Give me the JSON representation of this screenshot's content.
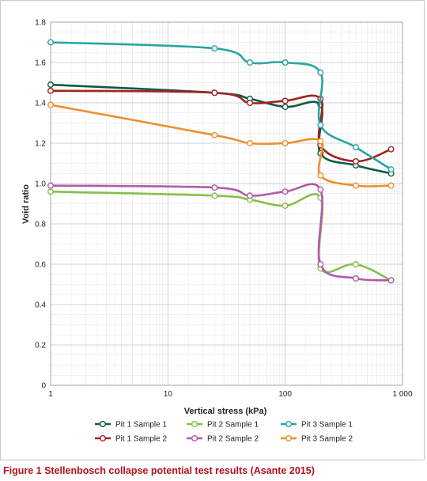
{
  "chart_data": {
    "type": "line",
    "xlabel": "Vertical stress (kPa)",
    "ylabel": "Void ratio",
    "xscale": "log",
    "xlim": [
      1,
      1000
    ],
    "ylim": [
      0,
      1.8
    ],
    "xticks": [
      {
        "value": 1,
        "label": "1"
      },
      {
        "value": 10,
        "label": "10"
      },
      {
        "value": 100,
        "label": "100"
      },
      {
        "value": 1000,
        "label": "1 000"
      }
    ],
    "yticks": [
      {
        "value": 0,
        "label": "0"
      },
      {
        "value": 0.2,
        "label": "0.2"
      },
      {
        "value": 0.4,
        "label": "0.4"
      },
      {
        "value": 0.6,
        "label": "0.6"
      },
      {
        "value": 0.8,
        "label": "0.8"
      },
      {
        "value": 1.0,
        "label": "1.0"
      },
      {
        "value": 1.2,
        "label": "1.2"
      },
      {
        "value": 1.4,
        "label": "1.4"
      },
      {
        "value": 1.6,
        "label": "1.6"
      },
      {
        "value": 1.8,
        "label": "1.8"
      }
    ],
    "grid": true,
    "legend_position": "bottom",
    "series": [
      {
        "name": "Pit 1 Sample 1",
        "color": "#0f5a44",
        "points": [
          [
            1,
            1.49
          ],
          [
            25,
            1.45
          ],
          [
            50,
            1.42
          ],
          [
            100,
            1.38
          ],
          [
            200,
            1.39
          ],
          [
            200,
            1.15
          ],
          [
            400,
            1.09
          ],
          [
            800,
            1.05
          ]
        ]
      },
      {
        "name": "Pit 1 Sample 2",
        "color": "#a0231e",
        "points": [
          [
            1,
            1.46
          ],
          [
            25,
            1.45
          ],
          [
            50,
            1.4
          ],
          [
            100,
            1.41
          ],
          [
            200,
            1.42
          ],
          [
            200,
            1.19
          ],
          [
            400,
            1.11
          ],
          [
            800,
            1.17
          ]
        ]
      },
      {
        "name": "Pit 2 Sample 1",
        "color": "#86c04b",
        "points": [
          [
            1,
            0.96
          ],
          [
            25,
            0.94
          ],
          [
            50,
            0.92
          ],
          [
            100,
            0.89
          ],
          [
            200,
            0.93
          ],
          [
            200,
            0.58
          ],
          [
            400,
            0.6
          ],
          [
            800,
            0.52
          ]
        ]
      },
      {
        "name": "Pit 2 Sample 2",
        "color": "#b35aa8",
        "points": [
          [
            1,
            0.99
          ],
          [
            25,
            0.98
          ],
          [
            50,
            0.94
          ],
          [
            100,
            0.96
          ],
          [
            200,
            0.97
          ],
          [
            200,
            0.6
          ],
          [
            400,
            0.53
          ],
          [
            800,
            0.52
          ]
        ]
      },
      {
        "name": "Pit 3 Sample 1",
        "color": "#2aa3a5",
        "points": [
          [
            1,
            1.7
          ],
          [
            25,
            1.67
          ],
          [
            50,
            1.6
          ],
          [
            100,
            1.6
          ],
          [
            200,
            1.55
          ],
          [
            200,
            1.29
          ],
          [
            400,
            1.18
          ],
          [
            800,
            1.07
          ]
        ]
      },
      {
        "name": "Pit 3 Sample 2",
        "color": "#ee8f2e",
        "points": [
          [
            1,
            1.39
          ],
          [
            25,
            1.24
          ],
          [
            50,
            1.2
          ],
          [
            100,
            1.2
          ],
          [
            200,
            1.21
          ],
          [
            200,
            1.04
          ],
          [
            400,
            0.99
          ],
          [
            800,
            0.99
          ]
        ]
      }
    ]
  },
  "caption": "Figure 1 Stellenbosch collapse potential test results (Asante 2015)"
}
